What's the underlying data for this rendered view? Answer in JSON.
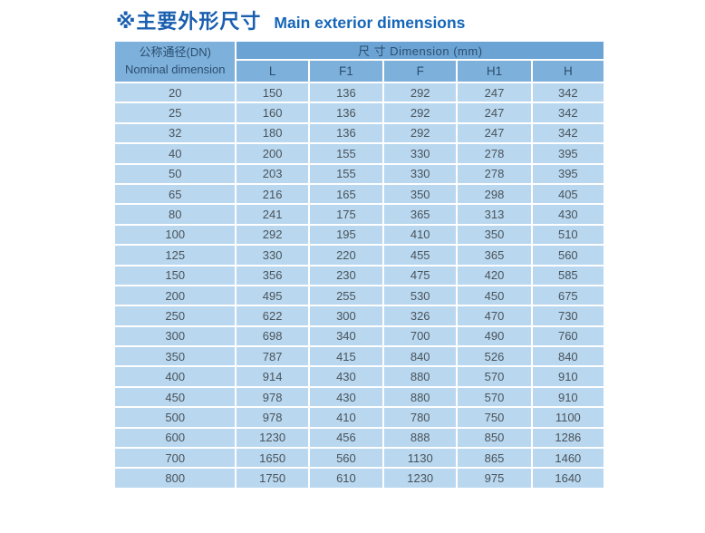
{
  "header": {
    "title_cn": "※主要外形尺寸",
    "title_en": "Main exterior dimensions"
  },
  "table": {
    "dn_header_line1": "公称通径(DN)",
    "dn_header_line2": "Nominal dimension",
    "dimension_group_header": "尺 寸 Dimension  (mm)",
    "columns": [
      "L",
      "F1",
      "F",
      "H1",
      "H"
    ],
    "rows": [
      [
        20,
        150,
        136,
        292,
        247,
        342
      ],
      [
        25,
        160,
        136,
        292,
        247,
        342
      ],
      [
        32,
        180,
        136,
        292,
        247,
        342
      ],
      [
        40,
        200,
        155,
        330,
        278,
        395
      ],
      [
        50,
        203,
        155,
        330,
        278,
        395
      ],
      [
        65,
        216,
        165,
        350,
        298,
        405
      ],
      [
        80,
        241,
        175,
        365,
        313,
        430
      ],
      [
        100,
        292,
        195,
        410,
        350,
        510
      ],
      [
        125,
        330,
        220,
        455,
        365,
        560
      ],
      [
        150,
        356,
        230,
        475,
        420,
        585
      ],
      [
        200,
        495,
        255,
        530,
        450,
        675
      ],
      [
        250,
        622,
        300,
        326,
        470,
        730
      ],
      [
        300,
        698,
        340,
        700,
        490,
        760
      ],
      [
        350,
        787,
        415,
        840,
        526,
        840
      ],
      [
        400,
        914,
        430,
        880,
        570,
        910
      ],
      [
        450,
        978,
        430,
        880,
        570,
        910
      ],
      [
        500,
        978,
        410,
        780,
        750,
        1100
      ],
      [
        600,
        1230,
        456,
        888,
        850,
        1286
      ],
      [
        700,
        1650,
        560,
        1130,
        865,
        1460
      ],
      [
        800,
        1750,
        610,
        1230,
        975,
        1640
      ]
    ]
  },
  "colors": {
    "title_cn": "#1a5fb0",
    "title_en": "#1566b8",
    "header_bg": "#6ba4d4",
    "subheader_bg": "#7db1dc",
    "row_bg": "#b9d7ee",
    "grid": "#ffffff",
    "header_text": "#2c4d6e",
    "cell_text": "#4a545c"
  }
}
